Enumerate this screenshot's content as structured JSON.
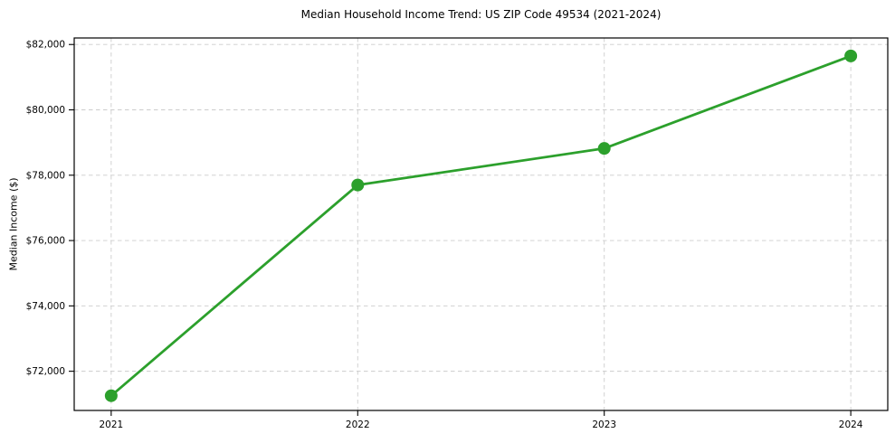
{
  "figure": {
    "background_color": "#ffffff"
  },
  "chart_data": {
    "type": "line",
    "title": "Median Household Income Trend: US ZIP Code 49534 (2021-2024)",
    "xlabel": "",
    "ylabel": "Median Income ($)",
    "x": [
      2021,
      2022,
      2023,
      2024
    ],
    "xtick_labels": [
      "2021",
      "2022",
      "2023",
      "2024"
    ],
    "values": [
      71250,
      77700,
      78820,
      81650
    ],
    "ytick_values": [
      72000,
      74000,
      76000,
      78000,
      80000,
      82000
    ],
    "ytick_labels": [
      "$72,000",
      "$74,000",
      "$76,000",
      "$78,000",
      "$80,000",
      "$82,000"
    ],
    "ylim": [
      70800,
      82200
    ],
    "xlim": [
      2020.85,
      2024.15
    ],
    "grid": true,
    "legend": "none",
    "line_color": "#2ca02c",
    "grid_color": "#cccccc",
    "axis_color": "#000000",
    "text_color": "#000000"
  }
}
